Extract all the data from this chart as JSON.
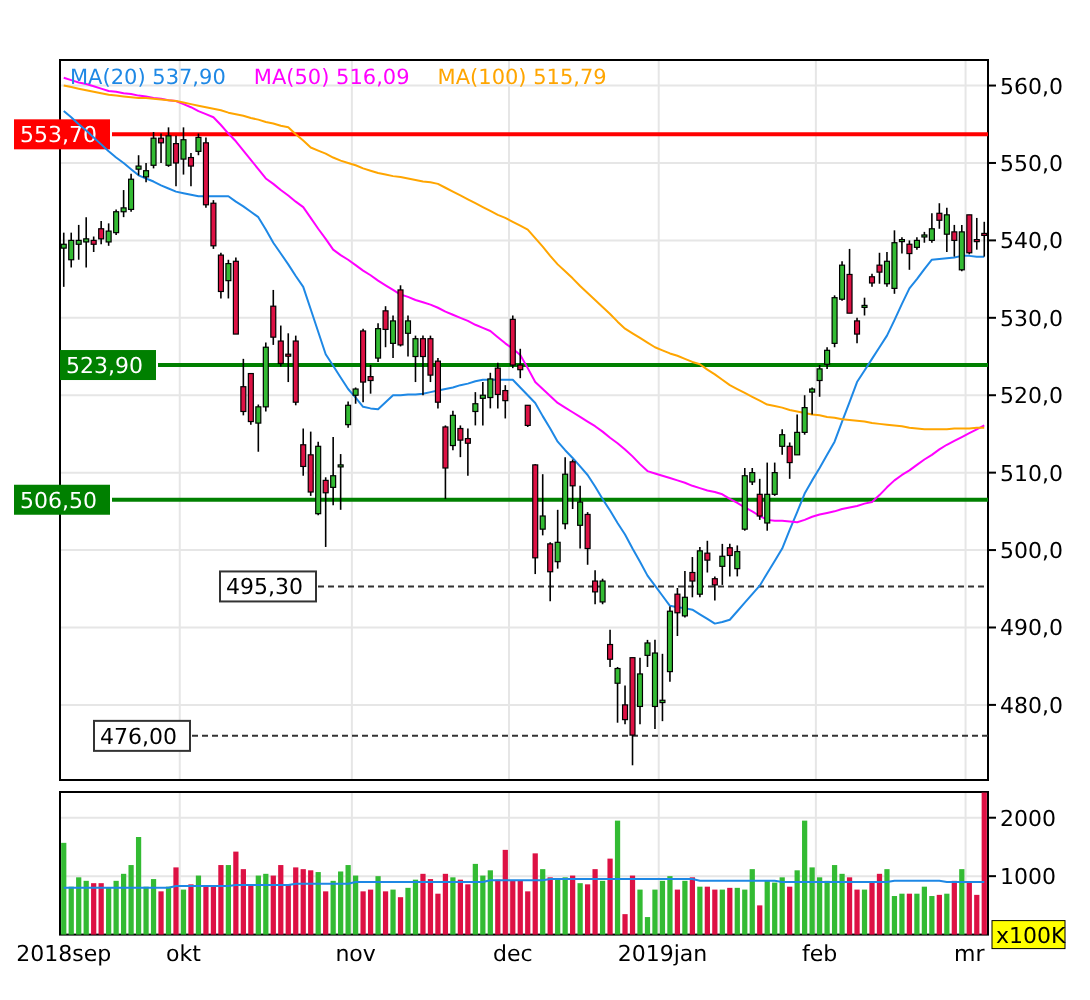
{
  "chart_data": [
    {
      "type": "candlestick",
      "categories": [
        null,
        null,
        null,
        null,
        null,
        null,
        null,
        null,
        null,
        null,
        null,
        null,
        null,
        null,
        null,
        null,
        null,
        null,
        null,
        null,
        null,
        null,
        null,
        null,
        null,
        null,
        null,
        null,
        null,
        null,
        null,
        null,
        null,
        null,
        null,
        null,
        null,
        null,
        null,
        null,
        null,
        null,
        null,
        null,
        null,
        null,
        null,
        null,
        null,
        null,
        null,
        null,
        null,
        null,
        null,
        null,
        null,
        null,
        null,
        null,
        null,
        null,
        null,
        null,
        null,
        null,
        null,
        null,
        null,
        null,
        null,
        null,
        null,
        null,
        null,
        null,
        null,
        null,
        null,
        null,
        null,
        null,
        null,
        null,
        null,
        null,
        null,
        null,
        null,
        null,
        null,
        null,
        null,
        null,
        null,
        null,
        null,
        null,
        null,
        null,
        null,
        null,
        null,
        null,
        null,
        null,
        null,
        null,
        null,
        null,
        null,
        null,
        null,
        null,
        null,
        null,
        null,
        null,
        null,
        null,
        null,
        null,
        null,
        null
      ],
      "ohlc": [
        [
          539,
          541,
          534,
          539.5
        ],
        [
          537.5,
          541,
          536.5,
          540
        ],
        [
          539.5,
          542,
          537.5,
          540
        ],
        [
          539.8,
          543,
          536.5,
          540.2
        ],
        [
          540,
          540.5,
          538.5,
          539.5
        ],
        [
          541.5,
          542.5,
          539.5,
          540.2
        ],
        [
          539.8,
          542.2,
          539.3,
          541.2
        ],
        [
          541,
          544,
          540.7,
          543.7
        ],
        [
          543.7,
          546.5,
          543,
          544.2
        ],
        [
          544,
          548.6,
          543.7,
          547.9
        ],
        [
          549.2,
          551,
          548.4,
          549.6
        ],
        [
          548.2,
          550,
          547.5,
          549
        ],
        [
          549.7,
          554,
          549.3,
          553.2
        ],
        [
          553.2,
          553.8,
          550,
          552.6
        ],
        [
          549.7,
          554.6,
          549.5,
          553.5
        ],
        [
          552.5,
          553.5,
          547,
          550
        ],
        [
          550.5,
          554.6,
          548.5,
          553
        ],
        [
          550.7,
          551.3,
          547,
          549.6
        ],
        [
          551.5,
          553.8,
          551,
          553.3
        ],
        [
          552.6,
          553.3,
          544.2,
          544.6
        ],
        [
          544.8,
          545.2,
          538.9,
          539.3
        ],
        [
          538.1,
          538.4,
          532.5,
          533.4
        ],
        [
          534.8,
          537.5,
          532.5,
          537
        ],
        [
          537.3,
          537.8,
          527.9,
          527.9
        ],
        [
          521.1,
          524.7,
          517.4,
          517.9
        ],
        [
          522.8,
          522.8,
          516.2,
          516.6
        ],
        [
          516.4,
          518.8,
          512.7,
          518.5
        ],
        [
          518.5,
          526.8,
          517.9,
          526.2
        ],
        [
          531.5,
          533.6,
          526.5,
          527.5
        ],
        [
          527,
          529,
          523.7,
          524.1
        ],
        [
          525.3,
          528,
          521.7,
          525.1
        ],
        [
          527,
          527.7,
          518.7,
          519.1
        ],
        [
          513.6,
          515.7,
          509.6,
          510.8
        ],
        [
          512.3,
          515.3,
          507,
          507.5
        ],
        [
          504.7,
          514,
          504.5,
          513.4
        ],
        [
          509,
          509.4,
          500.4,
          507.4
        ],
        [
          508.1,
          514.6,
          505.8,
          509.6
        ],
        [
          510.8,
          512.4,
          505.2,
          511
        ],
        [
          516.2,
          519.2,
          515.8,
          518.7
        ],
        [
          520,
          521,
          518.9,
          520.8
        ],
        [
          528.3,
          528.6,
          519.1,
          521.7
        ],
        [
          522.4,
          523.9,
          520.2,
          521.9
        ],
        [
          524.8,
          529.3,
          524.3,
          528.6
        ],
        [
          530.9,
          531.5,
          526.2,
          528.5
        ],
        [
          526.7,
          530.3,
          524.8,
          529.6
        ],
        [
          533.6,
          534.2,
          526.3,
          526.5
        ],
        [
          528,
          530.3,
          525,
          529.6
        ],
        [
          525,
          527.7,
          521.7,
          527.3
        ],
        [
          527.3,
          527.7,
          520,
          525
        ],
        [
          527.3,
          527.7,
          521.7,
          522.6
        ],
        [
          524.4,
          524.8,
          518.3,
          519.1
        ],
        [
          515.9,
          516.1,
          506.6,
          510.6
        ],
        [
          513.5,
          518,
          512.9,
          517.4
        ],
        [
          515.7,
          516.1,
          512,
          514.2
        ],
        [
          514.4,
          515.7,
          509.6,
          513.8
        ],
        [
          517.9,
          520.4,
          516.1,
          518.9
        ],
        [
          519.6,
          521.7,
          516.1,
          520
        ],
        [
          519.7,
          522.9,
          518.3,
          522.1
        ],
        [
          523.5,
          524.2,
          518.3,
          520.1
        ],
        [
          520.6,
          521.3,
          517,
          519.3
        ],
        [
          529.8,
          530.3,
          523.5,
          523.9
        ],
        [
          523.9,
          526,
          522.2,
          523.3
        ],
        [
          518.7,
          518.7,
          515.9,
          516.1
        ],
        [
          511,
          511.1,
          496.9,
          499
        ],
        [
          502.7,
          509.8,
          501.9,
          504.4
        ],
        [
          500.8,
          501,
          493.4,
          497.2
        ],
        [
          498.5,
          505.2,
          497.6,
          501
        ],
        [
          503.4,
          512,
          502.7,
          509.8
        ],
        [
          511.4,
          511.7,
          505.3,
          508.3
        ],
        [
          503.2,
          508.3,
          500.2,
          506.2
        ],
        [
          504.6,
          504.9,
          498.1,
          500.2
        ],
        [
          496,
          497.4,
          493,
          494.6
        ],
        [
          493.3,
          496.3,
          493,
          496
        ],
        [
          487.8,
          489.7,
          484.9,
          485.9
        ],
        [
          482.8,
          484.9,
          477.7,
          484.7
        ],
        [
          480,
          482.5,
          477.5,
          478.1
        ],
        [
          486.1,
          486.1,
          472.2,
          476.1
        ],
        [
          479.8,
          486.1,
          477.5,
          484
        ],
        [
          486.4,
          488.4,
          484.9,
          488
        ],
        [
          479.8,
          488.4,
          476.9,
          486.7
        ],
        [
          480.3,
          486.6,
          477.9,
          480.6
        ],
        [
          484.3,
          492.7,
          483,
          492.1
        ],
        [
          494.3,
          495.1,
          488.9,
          491.9
        ],
        [
          491.5,
          497.3,
          491.3,
          493.9
        ],
        [
          497.1,
          499.1,
          493.9,
          496
        ],
        [
          494.3,
          500.4,
          493.9,
          499.9
        ],
        [
          499.6,
          501.2,
          497.1,
          498.7
        ],
        [
          496.3,
          496.6,
          493.5,
          495.5
        ],
        [
          497.9,
          500.8,
          495.5,
          499.2
        ],
        [
          500.3,
          500.8,
          496.6,
          499.3
        ],
        [
          497.6,
          500.6,
          496.6,
          499.8
        ],
        [
          502.7,
          510.6,
          502.5,
          509.6
        ],
        [
          508.8,
          510.6,
          508.4,
          510
        ],
        [
          507.2,
          509.2,
          503.9,
          504.4
        ],
        [
          503.5,
          511.3,
          502.5,
          507.2
        ],
        [
          507.2,
          511.3,
          507,
          510
        ],
        [
          513.4,
          515.6,
          512.3,
          514.9
        ],
        [
          513.4,
          513.9,
          509.2,
          511.3
        ],
        [
          512.3,
          517.5,
          512.3,
          515.2
        ],
        [
          515.2,
          520,
          514.9,
          518.4
        ],
        [
          520.4,
          521,
          517.5,
          520.8
        ],
        [
          521.9,
          523.9,
          519.8,
          523.4
        ],
        [
          524,
          526.2,
          523.4,
          525.8
        ],
        [
          526.7,
          532.9,
          526.2,
          532.6
        ],
        [
          532.4,
          537.3,
          532.2,
          536.8
        ],
        [
          535.6,
          538.9,
          530.6,
          530.6
        ],
        [
          529.6,
          530,
          526.7,
          527.9
        ],
        [
          531.4,
          532.6,
          530.3,
          531.6
        ],
        [
          535.3,
          535.7,
          534,
          534.5
        ],
        [
          536.8,
          538.4,
          534.4,
          535.9
        ],
        [
          534.4,
          538.5,
          534,
          537.3
        ],
        [
          533.8,
          541.3,
          533.1,
          539.7
        ],
        [
          540,
          540.4,
          538.3,
          540.1
        ],
        [
          539.5,
          540,
          536.2,
          538.3
        ],
        [
          539.1,
          540.4,
          538.8,
          540
        ],
        [
          540.6,
          541.1,
          539.7,
          540.7
        ],
        [
          540,
          543.5,
          539.7,
          541.5
        ],
        [
          543.5,
          544.8,
          541.5,
          542.6
        ],
        [
          540.8,
          544.2,
          538.5,
          543.3
        ],
        [
          541.1,
          542,
          537.9,
          540
        ],
        [
          536.2,
          542,
          536,
          541.1
        ],
        [
          543.3,
          543.3,
          538.2,
          538.4
        ],
        [
          540.1,
          542.9,
          538.8,
          539.9
        ],
        [
          540.9,
          542.4,
          537.9,
          540.7
        ]
      ],
      "colors": [
        "#33bb33",
        "#33bb33",
        "#33bb33",
        "#33bb33",
        "#dd1144",
        "#dd1144",
        "#33bb33",
        "#33bb33",
        "#33bb33",
        "#33bb33",
        "#33bb33",
        "#33bb33",
        "#33bb33",
        "#dd1144",
        "#33bb33",
        "#dd1144",
        "#33bb33",
        "#dd1144",
        "#33bb33",
        "#dd1144",
        "#dd1144",
        "#dd1144",
        "#33bb33",
        "#dd1144",
        "#dd1144",
        "#dd1144",
        "#33bb33",
        "#33bb33",
        "#dd1144",
        "#dd1144",
        "#dd1144",
        "#dd1144",
        "#dd1144",
        "#dd1144",
        "#33bb33",
        "#dd1144",
        "#33bb33",
        "#33bb33",
        "#33bb33",
        "#33bb33",
        "#dd1144",
        "#dd1144",
        "#33bb33",
        "#dd1144",
        "#33bb33",
        "#dd1144",
        "#33bb33",
        "#33bb33",
        "#dd1144",
        "#dd1144",
        "#dd1144",
        "#dd1144",
        "#33bb33",
        "#dd1144",
        "#dd1144",
        "#33bb33",
        "#33bb33",
        "#33bb33",
        "#dd1144",
        "#dd1144",
        "#dd1144",
        "#dd1144",
        "#dd1144",
        "#dd1144",
        "#33bb33",
        "#dd1144",
        "#33bb33",
        "#33bb33",
        "#dd1144",
        "#33bb33",
        "#dd1144",
        "#dd1144",
        "#33bb33",
        "#dd1144",
        "#33bb33",
        "#dd1144",
        "#dd1144",
        "#33bb33",
        "#33bb33",
        "#33bb33",
        "#33bb33",
        "#33bb33",
        "#dd1144",
        "#33bb33",
        "#dd1144",
        "#33bb33",
        "#dd1144",
        "#dd1144",
        "#33bb33",
        "#dd1144",
        "#33bb33",
        "#33bb33",
        "#33bb33",
        "#dd1144",
        "#33bb33",
        "#33bb33",
        "#33bb33",
        "#dd1144",
        "#33bb33",
        "#33bb33",
        "#33bb33",
        "#33bb33",
        "#33bb33",
        "#33bb33",
        "#33bb33",
        "#dd1144",
        "#dd1144",
        "#33bb33",
        "#dd1144",
        "#dd1144",
        "#33bb33",
        "#33bb33",
        "#33bb33",
        "#dd1144",
        "#33bb33",
        "#33bb33",
        "#33bb33",
        "#dd1144",
        "#33bb33",
        "#dd1144",
        "#33bb33",
        "#dd1144",
        "#dd1144",
        "#dd1144"
      ],
      "series": [
        {
          "type": "line",
          "name": "MA(20) 537,90",
          "color": "#1e88e5",
          "values": [
            556.7,
            555.9,
            555,
            554.2,
            553.3,
            552.4,
            551.5,
            550.7,
            550,
            549.2,
            548.4,
            548,
            547.6,
            547.1,
            546.7,
            546.3,
            546.1,
            545.9,
            545.7,
            545.7,
            545.7,
            545.7,
            545.7,
            545,
            544.4,
            543.7,
            543,
            541.4,
            539.7,
            538.3,
            536.9,
            535.4,
            534,
            531.1,
            528.2,
            525.3,
            523.8,
            522.3,
            520.8,
            519.7,
            518.5,
            518.3,
            518.2,
            519.1,
            520,
            520,
            520.1,
            520.1,
            520.2,
            520.4,
            520.6,
            520.8,
            521,
            521.3,
            521.5,
            521.8,
            522,
            522,
            522,
            522,
            522,
            521,
            520,
            519,
            517.3,
            515.7,
            514,
            512.9,
            511.9,
            510.8,
            509.7,
            508.2,
            506.6,
            505.1,
            503.5,
            502,
            500.2,
            498.5,
            496.7,
            495.4,
            494.1,
            492.8,
            492.6,
            492.5,
            492.3,
            491.7,
            491.1,
            490.5,
            490.7,
            491,
            492.1,
            493.2,
            494.3,
            495.4,
            497,
            498.6,
            500.2,
            502.6,
            504.9,
            507.3,
            509,
            510.6,
            512.3,
            514,
            516.6,
            519.1,
            521.7,
            523.2,
            524.7,
            526.2,
            527.7,
            529.7,
            531.8,
            533.8,
            535,
            536.3,
            537.5,
            537.6,
            537.7,
            537.8,
            538,
            538,
            537.9,
            537.9
          ]
        },
        {
          "type": "line",
          "name": "MA(50) 516,09",
          "color": "#ff00ff",
          "values": [
            561,
            560.7,
            560.4,
            560.2,
            559.9,
            559.6,
            559.3,
            559.2,
            559,
            558.9,
            558.7,
            558.6,
            558.4,
            558.3,
            558.1,
            558,
            557.6,
            557.2,
            556.7,
            556.3,
            555.9,
            554.9,
            553.8,
            552.8,
            551.6,
            550.4,
            549.2,
            548,
            547.3,
            546.5,
            545.8,
            545,
            544.3,
            542.9,
            541.5,
            540.2,
            538.8,
            538.1,
            537.5,
            536.8,
            536.1,
            535.5,
            534.8,
            534.2,
            533.6,
            533,
            532.7,
            532.3,
            532,
            531.7,
            531.3,
            530.8,
            530.4,
            530,
            529.6,
            529.1,
            528.7,
            528.3,
            527.5,
            526.7,
            526,
            525.2,
            523.5,
            521.7,
            520.8,
            519.9,
            519,
            518.4,
            517.8,
            517.2,
            516.6,
            516,
            515.3,
            514.5,
            513.8,
            513,
            512.1,
            511.1,
            510.2,
            509.9,
            509.6,
            509.3,
            509,
            508.7,
            508.3,
            508,
            507.7,
            507.5,
            507.2,
            506.6,
            506.1,
            505.5,
            505,
            504.4,
            503.9,
            503.8,
            503.8,
            503.7,
            503.6,
            503.9,
            504.3,
            504.6,
            504.8,
            505,
            505.3,
            505.5,
            505.7,
            506,
            506.2,
            507.1,
            508.1,
            509,
            509.7,
            510.3,
            511,
            511.7,
            512.3,
            513,
            513.6,
            514.1,
            514.6,
            515.1,
            515.6,
            516.1
          ]
        },
        {
          "type": "line",
          "name": "MA(100) 515,79",
          "color": "#ffa500",
          "values": [
            560,
            559.8,
            559.6,
            559.4,
            559.2,
            559,
            558.8,
            558.7,
            558.6,
            558.5,
            558.4,
            558.4,
            558.3,
            558.2,
            558.1,
            558,
            557.8,
            557.6,
            557.4,
            557.2,
            557,
            556.8,
            556.5,
            556.3,
            556.1,
            555.8,
            555.6,
            555.3,
            555.1,
            554.8,
            554.6,
            553.7,
            552.9,
            552,
            551.6,
            551.2,
            550.7,
            550.3,
            550,
            549.7,
            549.3,
            549,
            548.7,
            548.5,
            548.3,
            548.2,
            548,
            547.8,
            547.6,
            547.5,
            547.3,
            546.8,
            546.3,
            545.8,
            545.3,
            544.8,
            544.3,
            543.8,
            543.3,
            542.9,
            542.4,
            541.9,
            541.4,
            540.3,
            539.2,
            538,
            536.9,
            536,
            535.1,
            534.1,
            533.2,
            532.3,
            531.4,
            530.5,
            529.5,
            528.6,
            528,
            527.4,
            526.8,
            526.2,
            525.8,
            525.4,
            525.1,
            524.7,
            524.3,
            524,
            523.3,
            522.7,
            522,
            521.3,
            520.8,
            520.3,
            519.8,
            519.3,
            518.8,
            518.6,
            518.4,
            518.1,
            517.9,
            517.7,
            517.5,
            517.4,
            517.2,
            517.1,
            516.9,
            516.8,
            516.7,
            516.6,
            516.4,
            516.3,
            516.2,
            516.1,
            516,
            515.8,
            515.7,
            515.6,
            515.6,
            515.6,
            515.6,
            515.7,
            515.7,
            515.7,
            515.8,
            515.8
          ]
        }
      ],
      "ylim": [
        470.3,
        563.3
      ],
      "yticks": [
        {
          "value": 480,
          "label": "480,0"
        },
        {
          "value": 490,
          "label": "490,0"
        },
        {
          "value": 500,
          "label": "500,0"
        },
        {
          "value": 510,
          "label": "510,0"
        },
        {
          "value": 520,
          "label": "520,0"
        },
        {
          "value": 530,
          "label": "530,0"
        },
        {
          "value": 540,
          "label": "540,0"
        },
        {
          "value": 550,
          "label": "550,0"
        },
        {
          "value": 560,
          "label": "560,0"
        }
      ],
      "grid": true,
      "tick_labels": "y",
      "legend": "top left",
      "ref_lines": [
        {
          "axis": "y",
          "value": 553.7,
          "label": "553,70",
          "color": "#ff0000",
          "line_style": "solid"
        },
        {
          "axis": "y",
          "value": 523.9,
          "label": "523,90",
          "color": "#008000",
          "line_style": "solid"
        },
        {
          "axis": "y",
          "value": 506.5,
          "label": "506,50",
          "color": "#008000",
          "line_style": "solid"
        },
        {
          "axis": "y",
          "value": 495.3,
          "label": "495,30",
          "color": "#333333",
          "line_style": "dashed"
        },
        {
          "axis": "y",
          "value": 476,
          "label": "476,00",
          "color": "#333333",
          "line_style": "dashed"
        }
      ]
    },
    {
      "type": "bar",
      "categories": [
        "2018sep",
        null,
        null,
        null,
        null,
        null,
        null,
        null,
        null,
        null,
        null,
        null,
        null,
        null,
        null,
        null,
        "okt",
        null,
        null,
        null,
        null,
        null,
        null,
        null,
        null,
        null,
        null,
        null,
        null,
        null,
        null,
        null,
        null,
        null,
        null,
        null,
        null,
        null,
        null,
        "nov",
        null,
        null,
        null,
        null,
        null,
        null,
        null,
        null,
        null,
        null,
        null,
        null,
        null,
        null,
        null,
        null,
        null,
        null,
        null,
        null,
        "dec",
        null,
        null,
        null,
        null,
        null,
        null,
        null,
        null,
        null,
        null,
        null,
        null,
        null,
        null,
        null,
        null,
        null,
        null,
        null,
        "2019jan",
        null,
        null,
        null,
        null,
        null,
        null,
        null,
        null,
        null,
        null,
        null,
        null,
        null,
        null,
        null,
        null,
        null,
        null,
        null,
        null,
        "feb",
        null,
        null,
        null,
        null,
        null,
        null,
        null,
        null,
        null,
        null,
        null,
        null,
        null,
        null,
        null,
        null,
        null,
        null,
        null,
        "mr",
        null,
        null
      ],
      "series": [
        {
          "type": "bar",
          "values": [
            1570,
            820,
            980,
            920,
            880,
            880,
            800,
            920,
            1040,
            1190,
            1670,
            820,
            950,
            740,
            820,
            1150,
            770,
            860,
            1010,
            820,
            820,
            1190,
            1190,
            1420,
            1120,
            860,
            1010,
            1040,
            1010,
            1190,
            860,
            1150,
            1120,
            1100,
            1070,
            740,
            920,
            1080,
            1190,
            1010,
            740,
            770,
            1000,
            740,
            770,
            640,
            800,
            940,
            1040,
            950,
            700,
            1040,
            980,
            940,
            860,
            1210,
            1010,
            1100,
            940,
            1450,
            920,
            920,
            740,
            1390,
            1120,
            980,
            950,
            980,
            1010,
            880,
            860,
            1120,
            920,
            1300,
            1950,
            350,
            1010,
            770,
            300,
            770,
            920,
            1000,
            770,
            920,
            980,
            820,
            820,
            770,
            770,
            800,
            800,
            770,
            1120,
            500,
            920,
            890,
            980,
            820,
            1100,
            1950,
            1150,
            980,
            920,
            1190,
            1040,
            980,
            770,
            770,
            890,
            1040,
            1120,
            660,
            700,
            700,
            700,
            820,
            660,
            680,
            700,
            920,
            1120,
            890,
            680,
            2430
          ],
          "colors": [
            "#33bb33",
            "#33bb33",
            "#33bb33",
            "#33bb33",
            "#dd1144",
            "#dd1144",
            "#33bb33",
            "#33bb33",
            "#33bb33",
            "#33bb33",
            "#33bb33",
            "#33bb33",
            "#33bb33",
            "#dd1144",
            "#33bb33",
            "#dd1144",
            "#33bb33",
            "#dd1144",
            "#33bb33",
            "#dd1144",
            "#dd1144",
            "#dd1144",
            "#33bb33",
            "#dd1144",
            "#dd1144",
            "#dd1144",
            "#33bb33",
            "#33bb33",
            "#dd1144",
            "#dd1144",
            "#dd1144",
            "#dd1144",
            "#dd1144",
            "#dd1144",
            "#33bb33",
            "#dd1144",
            "#33bb33",
            "#33bb33",
            "#33bb33",
            "#33bb33",
            "#dd1144",
            "#dd1144",
            "#33bb33",
            "#dd1144",
            "#33bb33",
            "#dd1144",
            "#33bb33",
            "#33bb33",
            "#dd1144",
            "#dd1144",
            "#dd1144",
            "#dd1144",
            "#33bb33",
            "#dd1144",
            "#dd1144",
            "#33bb33",
            "#33bb33",
            "#33bb33",
            "#dd1144",
            "#dd1144",
            "#dd1144",
            "#dd1144",
            "#dd1144",
            "#dd1144",
            "#33bb33",
            "#dd1144",
            "#33bb33",
            "#33bb33",
            "#dd1144",
            "#33bb33",
            "#dd1144",
            "#dd1144",
            "#33bb33",
            "#dd1144",
            "#33bb33",
            "#dd1144",
            "#dd1144",
            "#33bb33",
            "#33bb33",
            "#33bb33",
            "#33bb33",
            "#33bb33",
            "#dd1144",
            "#33bb33",
            "#dd1144",
            "#33bb33",
            "#dd1144",
            "#dd1144",
            "#33bb33",
            "#dd1144",
            "#33bb33",
            "#33bb33",
            "#33bb33",
            "#dd1144",
            "#33bb33",
            "#33bb33",
            "#33bb33",
            "#dd1144",
            "#33bb33",
            "#33bb33",
            "#33bb33",
            "#33bb33",
            "#33bb33",
            "#33bb33",
            "#33bb33",
            "#dd1144",
            "#dd1144",
            "#33bb33",
            "#dd1144",
            "#dd1144",
            "#33bb33",
            "#33bb33",
            "#33bb33",
            "#dd1144",
            "#33bb33",
            "#33bb33",
            "#33bb33",
            "#dd1144",
            "#33bb33",
            "#dd1144",
            "#33bb33",
            "#dd1144",
            "#dd1144",
            "#dd1144"
          ]
        },
        {
          "type": "line",
          "color": "#1e88e5",
          "values": [
            800,
            800,
            800,
            800,
            800,
            800,
            800,
            800,
            800,
            800,
            800,
            800,
            800,
            800,
            800,
            830,
            830,
            830,
            830,
            830,
            830,
            830,
            830,
            850,
            850,
            850,
            850,
            850,
            850,
            850,
            850,
            870,
            870,
            870,
            870,
            870,
            870,
            870,
            870,
            900,
            900,
            900,
            900,
            900,
            900,
            900,
            900,
            900,
            900,
            900,
            900,
            900,
            900,
            900,
            900,
            900,
            900,
            930,
            930,
            930,
            930,
            930,
            930,
            930,
            930,
            950,
            950,
            950,
            950,
            950,
            950,
            950,
            950,
            950,
            950,
            950,
            950,
            950,
            950,
            950,
            950,
            950,
            950,
            950,
            950,
            920,
            920,
            920,
            920,
            920,
            920,
            920,
            920,
            920,
            920,
            920,
            900,
            900,
            900,
            900,
            900,
            900,
            900,
            900,
            900,
            900,
            900,
            900,
            900,
            900,
            900,
            920,
            920,
            920,
            920,
            920,
            920,
            920,
            900,
            900,
            900,
            900,
            900,
            900
          ]
        }
      ],
      "ylim": [
        0,
        2440
      ],
      "yticks": [
        1000,
        2000
      ],
      "grid": true,
      "annotations": [
        "x100K"
      ]
    }
  ]
}
